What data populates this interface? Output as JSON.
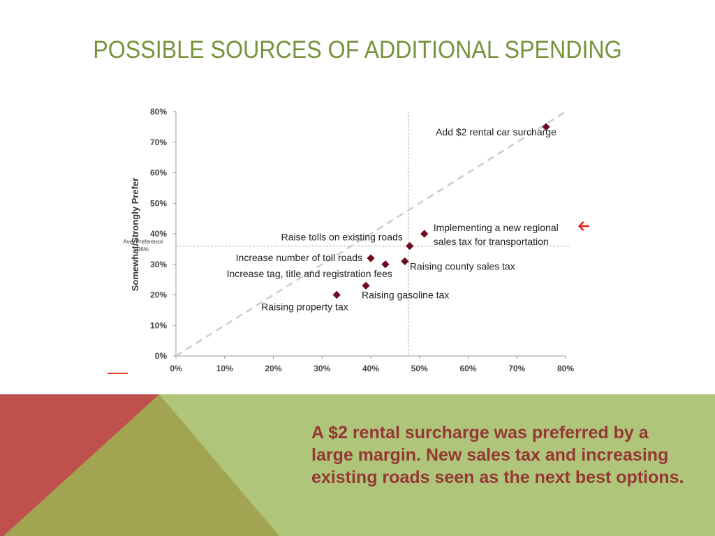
{
  "slide": {
    "title": "POSSIBLE SOURCES OF ADDITIONAL SPENDING",
    "note": "A $2 rental surcharge was preferred by a large margin. New sales tax and increasing existing roads seen as the next best options.",
    "colors": {
      "title": "#77933c",
      "note": "#953735",
      "red": "#c0504d",
      "olive": "#a3a452",
      "green": "#afc67a",
      "marker": "#6b0d1e",
      "arrow": "#e8201e"
    }
  },
  "chart_data": {
    "type": "scatter",
    "title": "",
    "xlabel": "",
    "ylabel": "Somewhat/Strongly Prefer",
    "xlim": [
      0,
      80
    ],
    "ylim": [
      0,
      80
    ],
    "xticks": [
      "0%",
      "10%",
      "20%",
      "30%",
      "40%",
      "50%",
      "60%",
      "70%",
      "80%"
    ],
    "yticks": [
      "0%",
      "10%",
      "20%",
      "30%",
      "40%",
      "50%",
      "60%",
      "70%",
      "80%"
    ],
    "reference_lines": {
      "diagonal": "y = x",
      "vertical_x": 47.7,
      "horizontal_y": 36,
      "horizontal_label_1": "Ave. Preference",
      "horizontal_label_2": "36%"
    },
    "points": [
      {
        "label": "Add $2 rental car surcharge",
        "x": 76,
        "y": 75
      },
      {
        "label": "Implementing a new regional",
        "label2": "sales tax for transportation",
        "x": 51,
        "y": 40,
        "highlighted": true
      },
      {
        "label": "Raise tolls on existing roads",
        "x": 48,
        "y": 36
      },
      {
        "label": "Increase number of toll roads",
        "x": 40,
        "y": 32
      },
      {
        "label": "Increase tag, title and registration fees",
        "x": 43,
        "y": 30
      },
      {
        "label": "Raising county sales tax",
        "x": 47,
        "y": 31
      },
      {
        "label": "Raising gasoline tax",
        "x": 39,
        "y": 23
      },
      {
        "label": "Raising property tax",
        "x": 33,
        "y": 20
      }
    ]
  }
}
